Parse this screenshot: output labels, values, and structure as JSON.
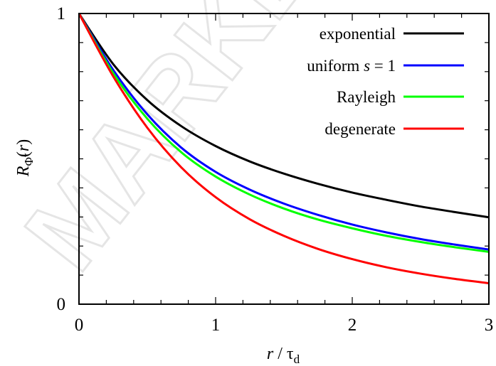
{
  "watermark": {
    "text": "MARKED MA"
  },
  "chart_data": {
    "type": "line",
    "xlabel": "r / τ_d",
    "ylabel": "R_Φ̃(r)",
    "xlim": [
      0,
      3
    ],
    "ylim": [
      0,
      1
    ],
    "x_ticks": [
      0,
      1,
      2,
      3
    ],
    "x_tick_labels": [
      "0",
      "1",
      "2",
      "3"
    ],
    "y_ticks": [
      0,
      1
    ],
    "y_tick_labels": [
      "0",
      "1"
    ],
    "x_minor_step": 0.2,
    "y_minor_step": 0.1,
    "grid": false,
    "legend_position": "top-right",
    "x": [
      0,
      0.25,
      0.5,
      0.75,
      1.0,
      1.25,
      1.5,
      1.75,
      2.0,
      2.25,
      2.5,
      2.75,
      3.0
    ],
    "series": [
      {
        "name": "exponential",
        "color": "#000000",
        "values": [
          1.0,
          0.826,
          0.702,
          0.612,
          0.544,
          0.491,
          0.449,
          0.414,
          0.384,
          0.359,
          0.336,
          0.317,
          0.299
        ]
      },
      {
        "name": "uniform s = 1",
        "color": "#0000ff",
        "values": [
          1.0,
          0.806,
          0.653,
          0.538,
          0.455,
          0.394,
          0.346,
          0.307,
          0.274,
          0.247,
          0.224,
          0.205,
          0.188
        ]
      },
      {
        "name": "Rayleigh",
        "color": "#00ff00",
        "values": [
          1.0,
          0.795,
          0.638,
          0.522,
          0.439,
          0.377,
          0.329,
          0.291,
          0.261,
          0.235,
          0.214,
          0.196,
          0.18
        ]
      },
      {
        "name": "degenerate",
        "color": "#ff0000",
        "values": [
          1.0,
          0.784,
          0.607,
          0.47,
          0.368,
          0.292,
          0.235,
          0.19,
          0.155,
          0.127,
          0.105,
          0.087,
          0.072
        ]
      }
    ]
  }
}
